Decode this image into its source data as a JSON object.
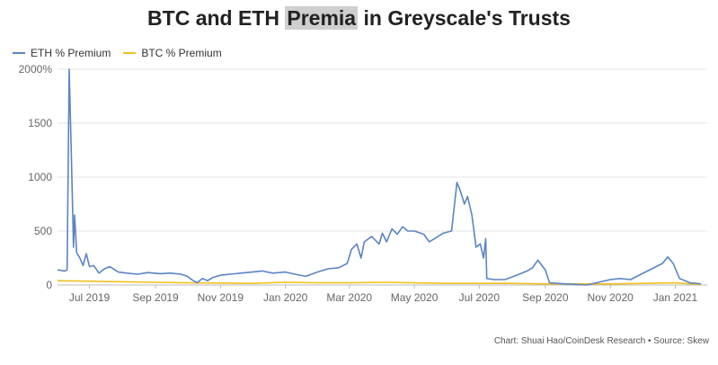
{
  "header": {
    "title_prefix": "BTC and ETH ",
    "title_highlight": "Premia",
    "title_suffix": " in Greyscale's Trusts"
  },
  "footer": {
    "credit": "Chart: Shuai Hao/CoinDesk Research • Source: Skew"
  },
  "colors": {
    "eth": "#5b84c4",
    "btc": "#f2c021",
    "grid": "#e6e6e6",
    "title_highlight_bg": "#cfcfcf"
  },
  "chart_data": {
    "type": "line",
    "title": "BTC and ETH Premia in Greyscale's Trusts",
    "xlabel": "",
    "ylabel": "",
    "ylim": [
      0,
      2000
    ],
    "y_ticks": [
      {
        "value": 0,
        "label": "0"
      },
      {
        "value": 500,
        "label": "500"
      },
      {
        "value": 1000,
        "label": "1000"
      },
      {
        "value": 1500,
        "label": "1500"
      },
      {
        "value": 2000,
        "label": "2000%"
      }
    ],
    "xlim": [
      "2019-06-01",
      "2021-01-31"
    ],
    "x_ticks": [
      {
        "value": "2019-07-01",
        "label": "Jul 2019"
      },
      {
        "value": "2019-09-01",
        "label": "Sep 2019"
      },
      {
        "value": "2019-11-01",
        "label": "Nov 2019"
      },
      {
        "value": "2020-01-01",
        "label": "Jan 2020"
      },
      {
        "value": "2020-03-01",
        "label": "Mar 2020"
      },
      {
        "value": "2020-05-01",
        "label": "May 2020"
      },
      {
        "value": "2020-07-01",
        "label": "Jul 2020"
      },
      {
        "value": "2020-09-01",
        "label": "Sep 2020"
      },
      {
        "value": "2020-11-01",
        "label": "Nov 2020"
      },
      {
        "value": "2021-01-01",
        "label": "Jan 2021"
      }
    ],
    "grid": true,
    "legend_position": "top-left",
    "series": [
      {
        "name": "ETH % Premium",
        "color": "#5b84c4",
        "points": [
          [
            "2019-06-01",
            140
          ],
          [
            "2019-06-08",
            130
          ],
          [
            "2019-06-10",
            140
          ],
          [
            "2019-06-12",
            2000
          ],
          [
            "2019-06-14",
            1200
          ],
          [
            "2019-06-16",
            350
          ],
          [
            "2019-06-17",
            650
          ],
          [
            "2019-06-19",
            300
          ],
          [
            "2019-06-22",
            250
          ],
          [
            "2019-06-25",
            180
          ],
          [
            "2019-06-28",
            290
          ],
          [
            "2019-07-01",
            170
          ],
          [
            "2019-07-05",
            180
          ],
          [
            "2019-07-10",
            110
          ],
          [
            "2019-07-15",
            150
          ],
          [
            "2019-07-20",
            170
          ],
          [
            "2019-07-28",
            120
          ],
          [
            "2019-08-05",
            110
          ],
          [
            "2019-08-15",
            100
          ],
          [
            "2019-08-25",
            115
          ],
          [
            "2019-09-05",
            105
          ],
          [
            "2019-09-15",
            110
          ],
          [
            "2019-09-25",
            100
          ],
          [
            "2019-10-01",
            80
          ],
          [
            "2019-10-05",
            50
          ],
          [
            "2019-10-10",
            20
          ],
          [
            "2019-10-15",
            60
          ],
          [
            "2019-10-20",
            40
          ],
          [
            "2019-10-25",
            70
          ],
          [
            "2019-11-01",
            90
          ],
          [
            "2019-11-10",
            100
          ],
          [
            "2019-11-20",
            110
          ],
          [
            "2019-12-01",
            120
          ],
          [
            "2019-12-10",
            130
          ],
          [
            "2019-12-20",
            110
          ],
          [
            "2020-01-01",
            120
          ],
          [
            "2020-01-10",
            100
          ],
          [
            "2020-01-20",
            80
          ],
          [
            "2020-01-31",
            120
          ],
          [
            "2020-02-10",
            150
          ],
          [
            "2020-02-20",
            160
          ],
          [
            "2020-02-28",
            200
          ],
          [
            "2020-03-03",
            330
          ],
          [
            "2020-03-08",
            380
          ],
          [
            "2020-03-12",
            250
          ],
          [
            "2020-03-15",
            400
          ],
          [
            "2020-03-22",
            450
          ],
          [
            "2020-03-29",
            380
          ],
          [
            "2020-04-01",
            480
          ],
          [
            "2020-04-05",
            400
          ],
          [
            "2020-04-10",
            520
          ],
          [
            "2020-04-15",
            470
          ],
          [
            "2020-04-20",
            540
          ],
          [
            "2020-04-25",
            500
          ],
          [
            "2020-05-01",
            500
          ],
          [
            "2020-05-10",
            470
          ],
          [
            "2020-05-15",
            400
          ],
          [
            "2020-05-20",
            430
          ],
          [
            "2020-05-28",
            480
          ],
          [
            "2020-06-05",
            500
          ],
          [
            "2020-06-10",
            950
          ],
          [
            "2020-06-13",
            880
          ],
          [
            "2020-06-17",
            750
          ],
          [
            "2020-06-20",
            820
          ],
          [
            "2020-06-24",
            650
          ],
          [
            "2020-06-28",
            350
          ],
          [
            "2020-07-02",
            380
          ],
          [
            "2020-07-05",
            250
          ],
          [
            "2020-07-07",
            430
          ],
          [
            "2020-07-08",
            60
          ],
          [
            "2020-07-15",
            50
          ],
          [
            "2020-07-25",
            50
          ],
          [
            "2020-08-05",
            90
          ],
          [
            "2020-08-10",
            110
          ],
          [
            "2020-08-15",
            130
          ],
          [
            "2020-08-20",
            160
          ],
          [
            "2020-08-25",
            230
          ],
          [
            "2020-09-01",
            140
          ],
          [
            "2020-09-05",
            20
          ],
          [
            "2020-09-20",
            10
          ],
          [
            "2020-10-10",
            0
          ],
          [
            "2020-11-01",
            50
          ],
          [
            "2020-11-10",
            60
          ],
          [
            "2020-11-20",
            50
          ],
          [
            "2020-11-30",
            100
          ],
          [
            "2020-12-10",
            150
          ],
          [
            "2020-12-20",
            200
          ],
          [
            "2020-12-25",
            260
          ],
          [
            "2020-12-30",
            200
          ],
          [
            "2021-01-05",
            60
          ],
          [
            "2021-01-15",
            20
          ],
          [
            "2021-01-25",
            10
          ]
        ]
      },
      {
        "name": "BTC % Premium",
        "color": "#f2c021",
        "points": [
          [
            "2019-06-01",
            40
          ],
          [
            "2019-07-01",
            35
          ],
          [
            "2019-08-01",
            30
          ],
          [
            "2019-09-01",
            25
          ],
          [
            "2019-10-01",
            20
          ],
          [
            "2019-11-01",
            18
          ],
          [
            "2019-12-01",
            15
          ],
          [
            "2020-01-01",
            25
          ],
          [
            "2020-02-01",
            20
          ],
          [
            "2020-03-01",
            20
          ],
          [
            "2020-04-01",
            25
          ],
          [
            "2020-05-01",
            20
          ],
          [
            "2020-06-01",
            15
          ],
          [
            "2020-07-01",
            15
          ],
          [
            "2020-08-01",
            15
          ],
          [
            "2020-09-01",
            10
          ],
          [
            "2020-10-01",
            10
          ],
          [
            "2020-11-01",
            10
          ],
          [
            "2020-12-01",
            15
          ],
          [
            "2021-01-01",
            20
          ],
          [
            "2021-01-25",
            5
          ]
        ]
      }
    ]
  }
}
